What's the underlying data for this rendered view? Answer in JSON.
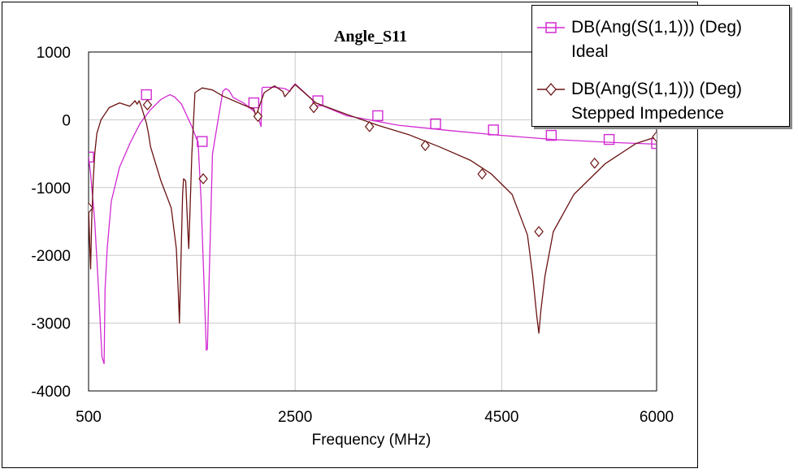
{
  "chart_data": {
    "type": "line",
    "title": "Angle_S11",
    "xlabel": "Frequency (MHz)",
    "ylabel": "",
    "xlim": [
      500,
      6000
    ],
    "ylim": [
      -4000,
      1000
    ],
    "xticks": [
      500,
      2500,
      4500,
      6000
    ],
    "yticks": [
      1000,
      0,
      -1000,
      -2000,
      -3000,
      -4000
    ],
    "grid": true,
    "legend_position": "top-right",
    "series": [
      {
        "name": "Ideal",
        "legend_line1": "DB(Ang(S(1,1))) (Deg)",
        "legend_line2": "Ideal",
        "color": "#d22ad2",
        "marker": "square",
        "x": [
          500,
          520,
          560,
          600,
          630,
          650,
          660,
          680,
          720,
          800,
          900,
          1000,
          1100,
          1200,
          1260,
          1290,
          1300,
          1330,
          1400,
          1500,
          1550,
          1560,
          1590,
          1620,
          1640,
          1650,
          1670,
          1700,
          1800,
          1830,
          1840,
          1850,
          1860,
          1880,
          1900,
          2000,
          2100,
          2150,
          2170,
          2180,
          2190,
          2200,
          2300,
          2400,
          2450,
          2460,
          2500,
          2700,
          3000,
          3500,
          4000,
          4500,
          5000,
          5500,
          6000
        ],
        "y": [
          -550,
          -800,
          -1500,
          -2600,
          -3500,
          -3600,
          -2500,
          -1900,
          -1200,
          -700,
          -350,
          -50,
          150,
          300,
          350,
          370,
          360,
          340,
          230,
          -100,
          -300,
          -320,
          -1200,
          -2500,
          -3400,
          -3380,
          -2200,
          -500,
          420,
          460,
          450,
          440,
          430,
          380,
          330,
          250,
          130,
          0,
          -100,
          470,
          480,
          480,
          480,
          460,
          420,
          460,
          530,
          250,
          60,
          -80,
          -160,
          -230,
          -290,
          -330,
          -360
        ],
        "markers_x": [
          500,
          1060,
          1600,
          2100,
          2720,
          3300,
          3860,
          4420,
          4980,
          5540,
          6000
        ],
        "markers_y": [
          -550,
          370,
          -320,
          250,
          280,
          60,
          -60,
          -150,
          -230,
          -290,
          -350
        ]
      },
      {
        "name": "Stepped Impedence",
        "legend_line1": "DB(Ang(S(1,1))) (Deg)",
        "legend_line2": "Stepped Impedence",
        "color": "#6b1212",
        "marker": "diamond",
        "x": [
          500,
          510,
          520,
          530,
          545,
          560,
          580,
          620,
          700,
          800,
          900,
          950,
          970,
          990,
          1010,
          1040,
          1060,
          1080,
          1100,
          1200,
          1300,
          1350,
          1370,
          1380,
          1410,
          1420,
          1440,
          1460,
          1470,
          1500,
          1530,
          1600,
          1700,
          1800,
          2000,
          2100,
          2120,
          2130,
          2200,
          2300,
          2380,
          2400,
          2500,
          2700,
          3000,
          3300,
          3600,
          3900,
          4200,
          4400,
          4600,
          4750,
          4800,
          4840,
          4860,
          4880,
          4920,
          5000,
          5200,
          5500,
          5800,
          6000
        ],
        "y": [
          -1300,
          -1800,
          -2200,
          -1500,
          -900,
          -500,
          -200,
          0,
          180,
          250,
          200,
          280,
          230,
          280,
          200,
          50,
          -50,
          -200,
          -400,
          -900,
          -1300,
          -1900,
          -2600,
          -3000,
          -1100,
          -870,
          -900,
          -1600,
          -1900,
          -500,
          400,
          470,
          440,
          350,
          220,
          160,
          60,
          100,
          400,
          500,
          420,
          340,
          520,
          250,
          80,
          -80,
          -220,
          -400,
          -600,
          -800,
          -1100,
          -1700,
          -2300,
          -2900,
          -3150,
          -2800,
          -2300,
          -1650,
          -1100,
          -650,
          -350,
          -250
        ],
        "markers_x": [
          500,
          1070,
          1610,
          2140,
          2680,
          3220,
          3760,
          4310,
          4860,
          5400,
          6000
        ],
        "markers_y": [
          -1300,
          220,
          -870,
          50,
          180,
          -100,
          -380,
          -800,
          -1650,
          -640,
          -250
        ]
      }
    ]
  }
}
